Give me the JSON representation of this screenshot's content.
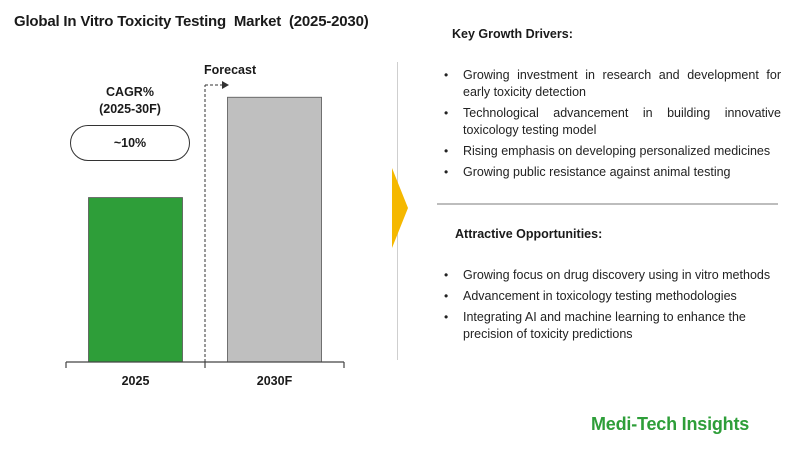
{
  "title": "Global In Vitro Toxicity Testing  Market  (2025-2030)",
  "cagr": {
    "label": "CAGR%\n(2025-30F)",
    "label_line1": "CAGR%",
    "label_line2": "(2025-30F)",
    "value": "~10%"
  },
  "forecast_label": "Forecast",
  "chart_data": {
    "type": "bar",
    "title": "Global In Vitro Toxicity Testing  Market  (2025-2030)",
    "categories": [
      "2025",
      "2030F"
    ],
    "values": [
      1.0,
      1.61
    ],
    "ylim": [
      0,
      1.8
    ],
    "xlabel": "",
    "ylabel": "",
    "grid": false,
    "colors": [
      "#2e9e39",
      "#bfbfbf"
    ],
    "forecast_from": "2030F",
    "cagr": "~10%"
  },
  "key_growth_drivers": {
    "title": "Key Growth Drivers:",
    "items": [
      "Growing investment in research and development for early toxicity detection",
      "Technological advancement in building innovative toxicology testing model",
      "Rising emphasis on developing personalized medicines",
      "Growing public resistance against animal testing"
    ]
  },
  "attractive_opportunities": {
    "title": "Attractive Opportunities:",
    "items": [
      "Growing focus on drug discovery using in vitro methods",
      "Advancement in toxicology testing methodologies",
      "Integrating AI and machine learning to enhance the precision of toxicity predictions"
    ]
  },
  "brand": "Medi-Tech Insights",
  "colors": {
    "accent_arrow": "#f5b800",
    "brand_green": "#2e9e39"
  }
}
